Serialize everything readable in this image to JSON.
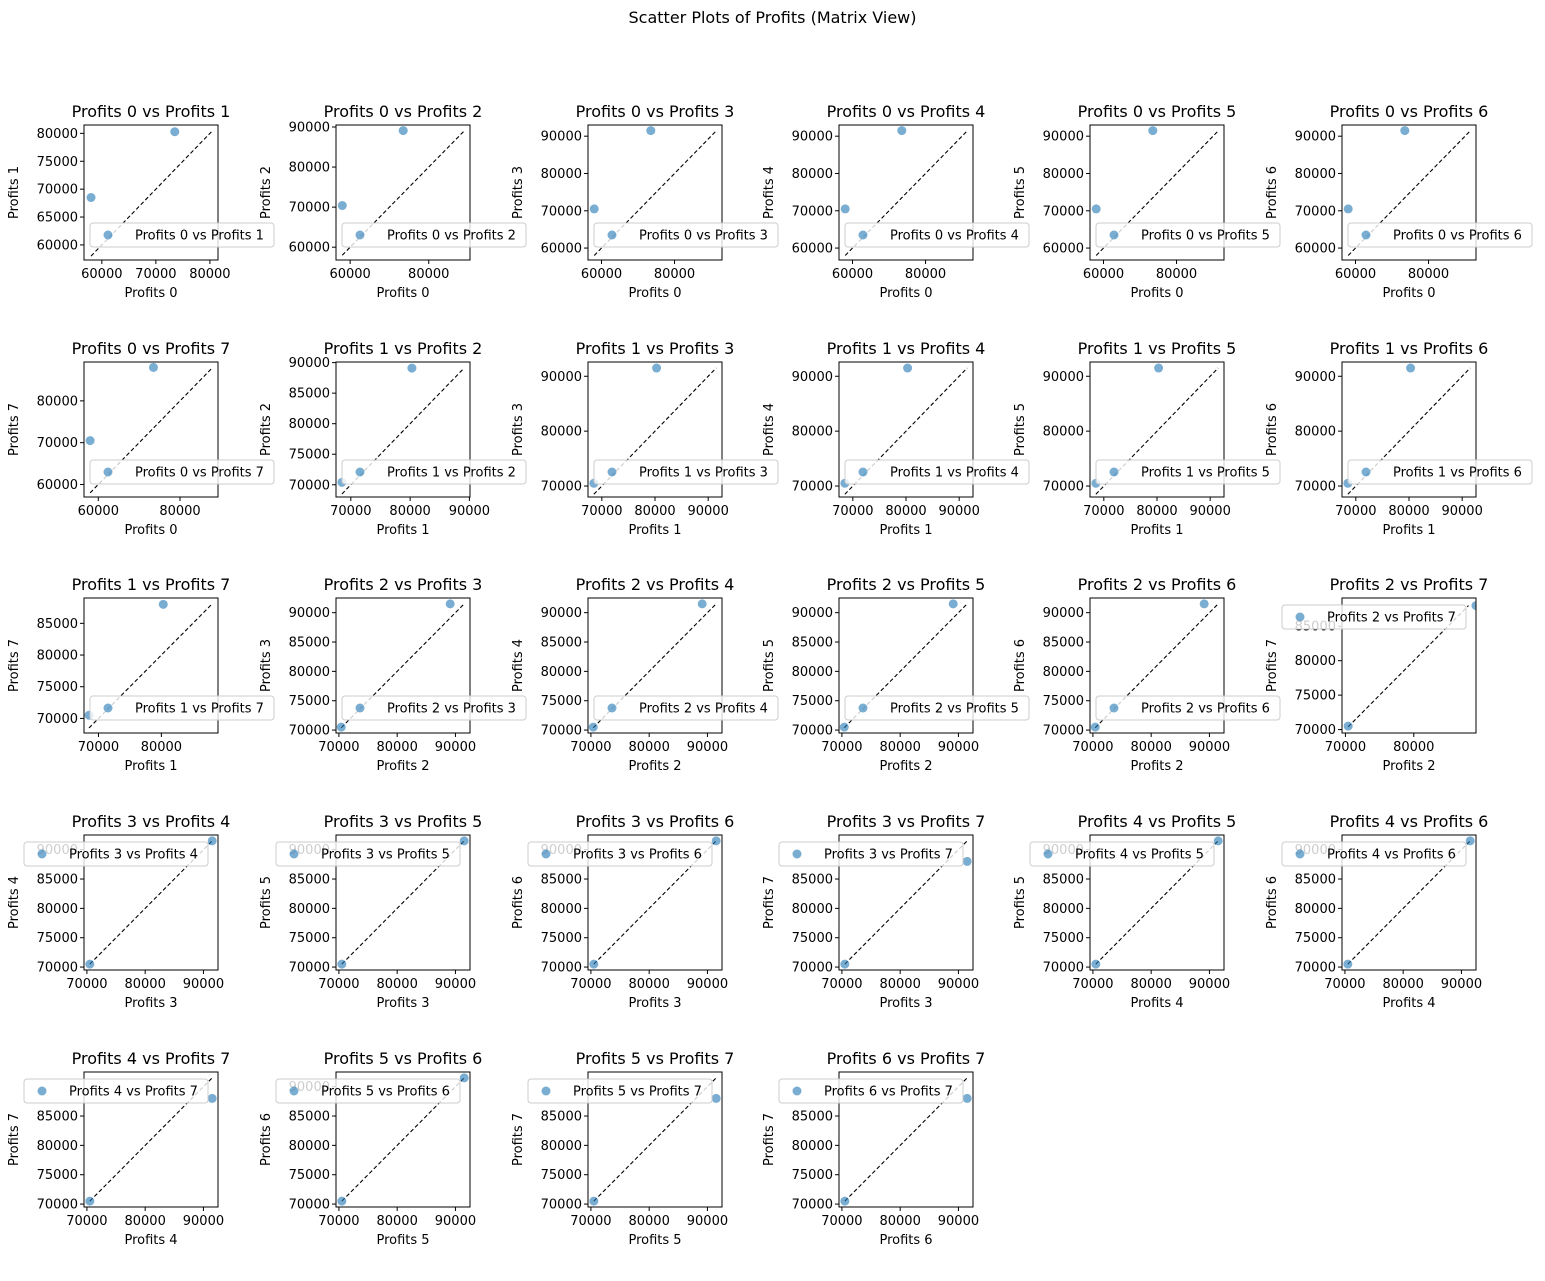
{
  "figure": {
    "title": "Scatter Plots of Profits (Matrix View)"
  },
  "chart_data": [
    {
      "type": "scatter",
      "title": "Profits 0 vs Profits 1",
      "xlabel": "Profits 0",
      "ylabel": "Profits 1",
      "xlim": [
        56700,
        81500
      ],
      "ylim": [
        57300,
        81500
      ],
      "xticks": [
        60000,
        70000,
        80000
      ],
      "yticks": [
        60000,
        65000,
        70000,
        75000,
        80000
      ],
      "points": [
        [
          58000,
          68500
        ],
        [
          73500,
          80300
        ]
      ],
      "diag": [
        58000,
        80300
      ],
      "legend": "Profits 0 vs Profits 1",
      "legend_loc": "lower-left"
    },
    {
      "type": "scatter",
      "title": "Profits 0 vs Profits 2",
      "xlabel": "Profits 0",
      "ylabel": "Profits 2",
      "xlim": [
        56400,
        90500
      ],
      "ylim": [
        56800,
        90500
      ],
      "xticks": [
        60000,
        80000
      ],
      "yticks": [
        60000,
        70000,
        80000,
        90000
      ],
      "points": [
        [
          58000,
          70400
        ],
        [
          73500,
          89100
        ]
      ],
      "diag": [
        58000,
        89100
      ],
      "legend": "Profits 0 vs Profits 2",
      "legend_loc": "lower-left"
    },
    {
      "type": "scatter",
      "title": "Profits 0 vs Profits 3",
      "xlabel": "Profits 0",
      "ylabel": "Profits 3",
      "xlim": [
        56300,
        93000
      ],
      "ylim": [
        56800,
        93000
      ],
      "xticks": [
        60000,
        80000
      ],
      "yticks": [
        60000,
        70000,
        80000,
        90000
      ],
      "points": [
        [
          58000,
          70500
        ],
        [
          73500,
          91500
        ]
      ],
      "diag": [
        58000,
        91500
      ],
      "legend": "Profits 0 vs Profits 3",
      "legend_loc": "lower-left"
    },
    {
      "type": "scatter",
      "title": "Profits 0 vs Profits 4",
      "xlabel": "Profits 0",
      "ylabel": "Profits 4",
      "xlim": [
        56300,
        93000
      ],
      "ylim": [
        56800,
        93000
      ],
      "xticks": [
        60000,
        80000
      ],
      "yticks": [
        60000,
        70000,
        80000,
        90000
      ],
      "points": [
        [
          58000,
          70500
        ],
        [
          73500,
          91500
        ]
      ],
      "diag": [
        58000,
        91500
      ],
      "legend": "Profits 0 vs Profits 4",
      "legend_loc": "lower-left"
    },
    {
      "type": "scatter",
      "title": "Profits 0 vs Profits 5",
      "xlabel": "Profits 0",
      "ylabel": "Profits 5",
      "xlim": [
        56300,
        93000
      ],
      "ylim": [
        56800,
        93000
      ],
      "xticks": [
        60000,
        80000
      ],
      "yticks": [
        60000,
        70000,
        80000,
        90000
      ],
      "points": [
        [
          58000,
          70500
        ],
        [
          73500,
          91500
        ]
      ],
      "diag": [
        58000,
        91500
      ],
      "legend": "Profits 0 vs Profits 5",
      "legend_loc": "lower-left"
    },
    {
      "type": "scatter",
      "title": "Profits 0 vs Profits 6",
      "xlabel": "Profits 0",
      "ylabel": "Profits 6",
      "xlim": [
        56300,
        93000
      ],
      "ylim": [
        56800,
        93000
      ],
      "xticks": [
        60000,
        80000
      ],
      "yticks": [
        60000,
        70000,
        80000,
        90000
      ],
      "points": [
        [
          58000,
          70500
        ],
        [
          73500,
          91500
        ]
      ],
      "diag": [
        58000,
        91500
      ],
      "legend": "Profits 0 vs Profits 6",
      "legend_loc": "lower-left"
    },
    {
      "type": "scatter",
      "title": "Profits 0 vs Profits 7",
      "xlabel": "Profits 0",
      "ylabel": "Profits 7",
      "xlim": [
        56500,
        89300
      ],
      "ylim": [
        57000,
        89300
      ],
      "xticks": [
        60000,
        80000
      ],
      "yticks": [
        60000,
        70000,
        80000
      ],
      "points": [
        [
          58000,
          70500
        ],
        [
          73500,
          88000
        ]
      ],
      "diag": [
        58000,
        88000
      ],
      "legend": "Profits 0 vs Profits 7",
      "legend_loc": "lower-left"
    },
    {
      "type": "scatter",
      "title": "Profits 1 vs Profits 2",
      "xlabel": "Profits 1",
      "ylabel": "Profits 2",
      "xlim": [
        67500,
        90100
      ],
      "ylim": [
        68000,
        90100
      ],
      "xticks": [
        70000,
        80000,
        90000
      ],
      "yticks": [
        70000,
        75000,
        80000,
        85000,
        90000
      ],
      "points": [
        [
          68500,
          70400
        ],
        [
          80300,
          89100
        ]
      ],
      "diag": [
        68500,
        89100
      ],
      "legend": "Profits 1 vs Profits 2",
      "legend_loc": "lower-left"
    },
    {
      "type": "scatter",
      "title": "Profits 1 vs Profits 3",
      "xlabel": "Profits 1",
      "ylabel": "Profits 3",
      "xlim": [
        67400,
        92600
      ],
      "ylim": [
        68000,
        92600
      ],
      "xticks": [
        70000,
        80000,
        90000
      ],
      "yticks": [
        70000,
        80000,
        90000
      ],
      "points": [
        [
          68500,
          70500
        ],
        [
          80300,
          91500
        ]
      ],
      "diag": [
        68500,
        91500
      ],
      "legend": "Profits 1 vs Profits 3",
      "legend_loc": "lower-left"
    },
    {
      "type": "scatter",
      "title": "Profits 1 vs Profits 4",
      "xlabel": "Profits 1",
      "ylabel": "Profits 4",
      "xlim": [
        67400,
        92600
      ],
      "ylim": [
        68000,
        92600
      ],
      "xticks": [
        70000,
        80000,
        90000
      ],
      "yticks": [
        70000,
        80000,
        90000
      ],
      "points": [
        [
          68500,
          70500
        ],
        [
          80300,
          91500
        ]
      ],
      "diag": [
        68500,
        91500
      ],
      "legend": "Profits 1 vs Profits 4",
      "legend_loc": "lower-left"
    },
    {
      "type": "scatter",
      "title": "Profits 1 vs Profits 5",
      "xlabel": "Profits 1",
      "ylabel": "Profits 5",
      "xlim": [
        67400,
        92600
      ],
      "ylim": [
        68000,
        92600
      ],
      "xticks": [
        70000,
        80000,
        90000
      ],
      "yticks": [
        70000,
        80000,
        90000
      ],
      "points": [
        [
          68500,
          70500
        ],
        [
          80300,
          91500
        ]
      ],
      "diag": [
        68500,
        91500
      ],
      "legend": "Profits 1 vs Profits 5",
      "legend_loc": "lower-left"
    },
    {
      "type": "scatter",
      "title": "Profits 1 vs Profits 6",
      "xlabel": "Profits 1",
      "ylabel": "Profits 6",
      "xlim": [
        67400,
        92600
      ],
      "ylim": [
        68000,
        92600
      ],
      "xticks": [
        70000,
        80000,
        90000
      ],
      "yticks": [
        70000,
        80000,
        90000
      ],
      "points": [
        [
          68500,
          70500
        ],
        [
          80300,
          91500
        ]
      ],
      "diag": [
        68500,
        91500
      ],
      "legend": "Profits 1 vs Profits 6",
      "legend_loc": "lower-left"
    },
    {
      "type": "scatter",
      "title": "Profits 1 vs Profits 7",
      "xlabel": "Profits 1",
      "ylabel": "Profits 7",
      "xlim": [
        67700,
        89000
      ],
      "ylim": [
        67700,
        89000
      ],
      "xticks": [
        70000,
        80000
      ],
      "yticks": [
        70000,
        75000,
        80000,
        85000
      ],
      "points": [
        [
          68500,
          70500
        ],
        [
          80300,
          88000
        ]
      ],
      "diag": [
        68500,
        88000
      ],
      "legend": "Profits 1 vs Profits 7",
      "legend_loc": "lower-left"
    },
    {
      "type": "scatter",
      "title": "Profits 2 vs Profits 3",
      "xlabel": "Profits 2",
      "ylabel": "Profits 3",
      "xlim": [
        69500,
        92500
      ],
      "ylim": [
        69500,
        92500
      ],
      "xticks": [
        70000,
        80000,
        90000
      ],
      "yticks": [
        70000,
        75000,
        80000,
        85000,
        90000
      ],
      "points": [
        [
          70400,
          70500
        ],
        [
          89100,
          91500
        ]
      ],
      "diag": [
        70400,
        91500
      ],
      "legend": "Profits 2 vs Profits 3",
      "legend_loc": "lower-left"
    },
    {
      "type": "scatter",
      "title": "Profits 2 vs Profits 4",
      "xlabel": "Profits 2",
      "ylabel": "Profits 4",
      "xlim": [
        69500,
        92500
      ],
      "ylim": [
        69500,
        92500
      ],
      "xticks": [
        70000,
        80000,
        90000
      ],
      "yticks": [
        70000,
        75000,
        80000,
        85000,
        90000
      ],
      "points": [
        [
          70400,
          70500
        ],
        [
          89100,
          91500
        ]
      ],
      "diag": [
        70400,
        91500
      ],
      "legend": "Profits 2 vs Profits 4",
      "legend_loc": "lower-left"
    },
    {
      "type": "scatter",
      "title": "Profits 2 vs Profits 5",
      "xlabel": "Profits 2",
      "ylabel": "Profits 5",
      "xlim": [
        69500,
        92500
      ],
      "ylim": [
        69500,
        92500
      ],
      "xticks": [
        70000,
        80000,
        90000
      ],
      "yticks": [
        70000,
        75000,
        80000,
        85000,
        90000
      ],
      "points": [
        [
          70400,
          70500
        ],
        [
          89100,
          91500
        ]
      ],
      "diag": [
        70400,
        91500
      ],
      "legend": "Profits 2 vs Profits 5",
      "legend_loc": "lower-left"
    },
    {
      "type": "scatter",
      "title": "Profits 2 vs Profits 6",
      "xlabel": "Profits 2",
      "ylabel": "Profits 6",
      "xlim": [
        69500,
        92500
      ],
      "ylim": [
        69500,
        92500
      ],
      "xticks": [
        70000,
        80000,
        90000
      ],
      "yticks": [
        70000,
        75000,
        80000,
        85000,
        90000
      ],
      "points": [
        [
          70400,
          70500
        ],
        [
          89100,
          91500
        ]
      ],
      "diag": [
        70400,
        91500
      ],
      "legend": "Profits 2 vs Profits 6",
      "legend_loc": "lower-left"
    },
    {
      "type": "scatter",
      "title": "Profits 2 vs Profits 7",
      "xlabel": "Profits 2",
      "ylabel": "Profits 7",
      "xlim": [
        69500,
        89100
      ],
      "ylim": [
        69500,
        89100
      ],
      "xticks": [
        70000,
        80000
      ],
      "yticks": [
        70000,
        75000,
        80000,
        85000
      ],
      "points": [
        [
          70400,
          70500
        ],
        [
          89100,
          88000
        ]
      ],
      "diag": [
        70400,
        88000
      ],
      "legend": "Profits 2 vs Profits 7",
      "legend_loc": "upper-left"
    },
    {
      "type": "scatter",
      "title": "Profits 3 vs Profits 4",
      "xlabel": "Profits 3",
      "ylabel": "Profits 4",
      "xlim": [
        69500,
        92500
      ],
      "ylim": [
        69500,
        92500
      ],
      "xticks": [
        70000,
        80000,
        90000
      ],
      "yticks": [
        70000,
        75000,
        80000,
        85000,
        90000
      ],
      "points": [
        [
          70500,
          70500
        ],
        [
          91500,
          91500
        ]
      ],
      "diag": [
        70500,
        91500
      ],
      "legend": "Profits 3 vs Profits 4",
      "legend_loc": "upper-left"
    },
    {
      "type": "scatter",
      "title": "Profits 3 vs Profits 5",
      "xlabel": "Profits 3",
      "ylabel": "Profits 5",
      "xlim": [
        69500,
        92500
      ],
      "ylim": [
        69500,
        92500
      ],
      "xticks": [
        70000,
        80000,
        90000
      ],
      "yticks": [
        70000,
        75000,
        80000,
        85000,
        90000
      ],
      "points": [
        [
          70500,
          70500
        ],
        [
          91500,
          91500
        ]
      ],
      "diag": [
        70500,
        91500
      ],
      "legend": "Profits 3 vs Profits 5",
      "legend_loc": "upper-left"
    },
    {
      "type": "scatter",
      "title": "Profits 3 vs Profits 6",
      "xlabel": "Profits 3",
      "ylabel": "Profits 6",
      "xlim": [
        69500,
        92500
      ],
      "ylim": [
        69500,
        92500
      ],
      "xticks": [
        70000,
        80000,
        90000
      ],
      "yticks": [
        70000,
        75000,
        80000,
        85000,
        90000
      ],
      "points": [
        [
          70500,
          70500
        ],
        [
          91500,
          91500
        ]
      ],
      "diag": [
        70500,
        91500
      ],
      "legend": "Profits 3 vs Profits 6",
      "legend_loc": "upper-left"
    },
    {
      "type": "scatter",
      "title": "Profits 3 vs Profits 7",
      "xlabel": "Profits 3",
      "ylabel": "Profits 7",
      "xlim": [
        69500,
        92500
      ],
      "ylim": [
        69500,
        92500
      ],
      "xticks": [
        70000,
        80000,
        90000
      ],
      "yticks": [
        70000,
        75000,
        80000,
        85000
      ],
      "points": [
        [
          70500,
          70500
        ],
        [
          91500,
          88000
        ]
      ],
      "diag": [
        70500,
        91500
      ],
      "legend": "Profits 3 vs Profits 7",
      "legend_loc": "upper-left"
    },
    {
      "type": "scatter",
      "title": "Profits 4 vs Profits 5",
      "xlabel": "Profits 4",
      "ylabel": "Profits 5",
      "xlim": [
        69500,
        92500
      ],
      "ylim": [
        69500,
        92500
      ],
      "xticks": [
        70000,
        80000,
        90000
      ],
      "yticks": [
        70000,
        75000,
        80000,
        85000,
        90000
      ],
      "points": [
        [
          70500,
          70500
        ],
        [
          91500,
          91500
        ]
      ],
      "diag": [
        70500,
        91500
      ],
      "legend": "Profits 4 vs Profits 5",
      "legend_loc": "upper-left"
    },
    {
      "type": "scatter",
      "title": "Profits 4 vs Profits 6",
      "xlabel": "Profits 4",
      "ylabel": "Profits 6",
      "xlim": [
        69500,
        92500
      ],
      "ylim": [
        69500,
        92500
      ],
      "xticks": [
        70000,
        80000,
        90000
      ],
      "yticks": [
        70000,
        75000,
        80000,
        85000,
        90000
      ],
      "points": [
        [
          70500,
          70500
        ],
        [
          91500,
          91500
        ]
      ],
      "diag": [
        70500,
        91500
      ],
      "legend": "Profits 4 vs Profits 6",
      "legend_loc": "upper-left"
    },
    {
      "type": "scatter",
      "title": "Profits 4 vs Profits 7",
      "xlabel": "Profits 4",
      "ylabel": "Profits 7",
      "xlim": [
        69500,
        92500
      ],
      "ylim": [
        69500,
        92500
      ],
      "xticks": [
        70000,
        80000,
        90000
      ],
      "yticks": [
        70000,
        75000,
        80000,
        85000
      ],
      "points": [
        [
          70500,
          70500
        ],
        [
          91500,
          88000
        ]
      ],
      "diag": [
        70500,
        91500
      ],
      "legend": "Profits 4 vs Profits 7",
      "legend_loc": "upper-left"
    },
    {
      "type": "scatter",
      "title": "Profits 5 vs Profits 6",
      "xlabel": "Profits 5",
      "ylabel": "Profits 6",
      "xlim": [
        69500,
        92500
      ],
      "ylim": [
        69500,
        92500
      ],
      "xticks": [
        70000,
        80000,
        90000
      ],
      "yticks": [
        70000,
        75000,
        80000,
        85000,
        90000
      ],
      "points": [
        [
          70500,
          70500
        ],
        [
          91500,
          91500
        ]
      ],
      "diag": [
        70500,
        91500
      ],
      "legend": "Profits 5 vs Profits 6",
      "legend_loc": "upper-left"
    },
    {
      "type": "scatter",
      "title": "Profits 5 vs Profits 7",
      "xlabel": "Profits 5",
      "ylabel": "Profits 7",
      "xlim": [
        69500,
        92500
      ],
      "ylim": [
        69500,
        92500
      ],
      "xticks": [
        70000,
        80000,
        90000
      ],
      "yticks": [
        70000,
        75000,
        80000,
        85000
      ],
      "points": [
        [
          70500,
          70500
        ],
        [
          91500,
          88000
        ]
      ],
      "diag": [
        70500,
        91500
      ],
      "legend": "Profits 5 vs Profits 7",
      "legend_loc": "upper-left"
    },
    {
      "type": "scatter",
      "title": "Profits 6 vs Profits 7",
      "xlabel": "Profits 6",
      "ylabel": "Profits 7",
      "xlim": [
        69500,
        92500
      ],
      "ylim": [
        69500,
        92500
      ],
      "xticks": [
        70000,
        80000,
        90000
      ],
      "yticks": [
        70000,
        75000,
        80000,
        85000
      ],
      "points": [
        [
          70500,
          70500
        ],
        [
          91500,
          88000
        ]
      ],
      "diag": [
        70500,
        91500
      ],
      "legend": "Profits 6 vs Profits 7",
      "legend_loc": "upper-left"
    }
  ]
}
